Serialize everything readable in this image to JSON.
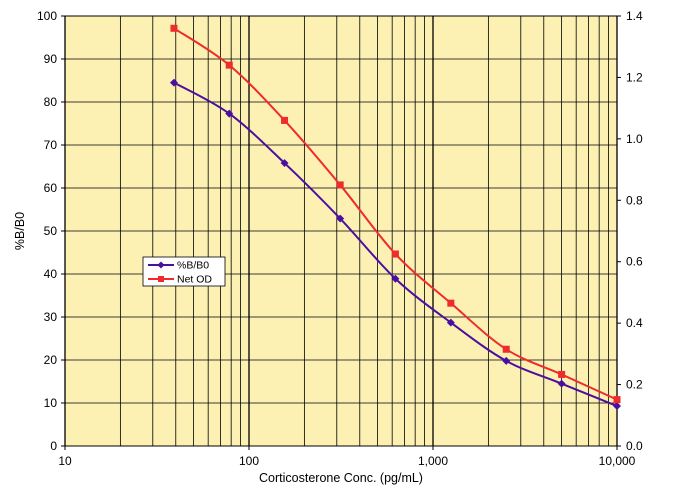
{
  "chart_data": {
    "type": "line",
    "x_scale": "log",
    "x": [
      39.1,
      78.1,
      156,
      313,
      625,
      1250,
      2500,
      5000,
      10000
    ],
    "xlim": [
      10,
      10000
    ],
    "x_ticks": [
      10,
      100,
      1000,
      10000
    ],
    "x_tick_labels": [
      "10",
      "100",
      "1,000",
      "10,000"
    ],
    "xlabel": "Corticosterone Conc. (pg/mL)",
    "ylabel_left": "%B/B0",
    "ylim_left": [
      0,
      100
    ],
    "y_ticks_left": [
      "0",
      "10",
      "20",
      "30",
      "40",
      "50",
      "60",
      "70",
      "80",
      "90",
      "100"
    ],
    "ylim_right": [
      0,
      1.4
    ],
    "y_ticks_right": [
      "0.0",
      "0.2",
      "0.4",
      "0.6",
      "0.8",
      "1.0",
      "1.2",
      "1.4"
    ],
    "grid": true,
    "legend_position": "middle-left",
    "series": [
      {
        "name": "%B/B0",
        "axis": "left",
        "color": "#4b0fa0",
        "marker": "diamond",
        "values": [
          84.5,
          77.3,
          65.8,
          52.9,
          38.9,
          28.7,
          19.8,
          14.5,
          9.3
        ]
      },
      {
        "name": "Net OD",
        "axis": "right",
        "color": "#ef2b2b",
        "marker": "square",
        "values": [
          1.36,
          1.24,
          1.06,
          0.85,
          0.625,
          0.465,
          0.315,
          0.233,
          0.151
        ]
      }
    ],
    "plot_background": "#fcf0b3"
  }
}
